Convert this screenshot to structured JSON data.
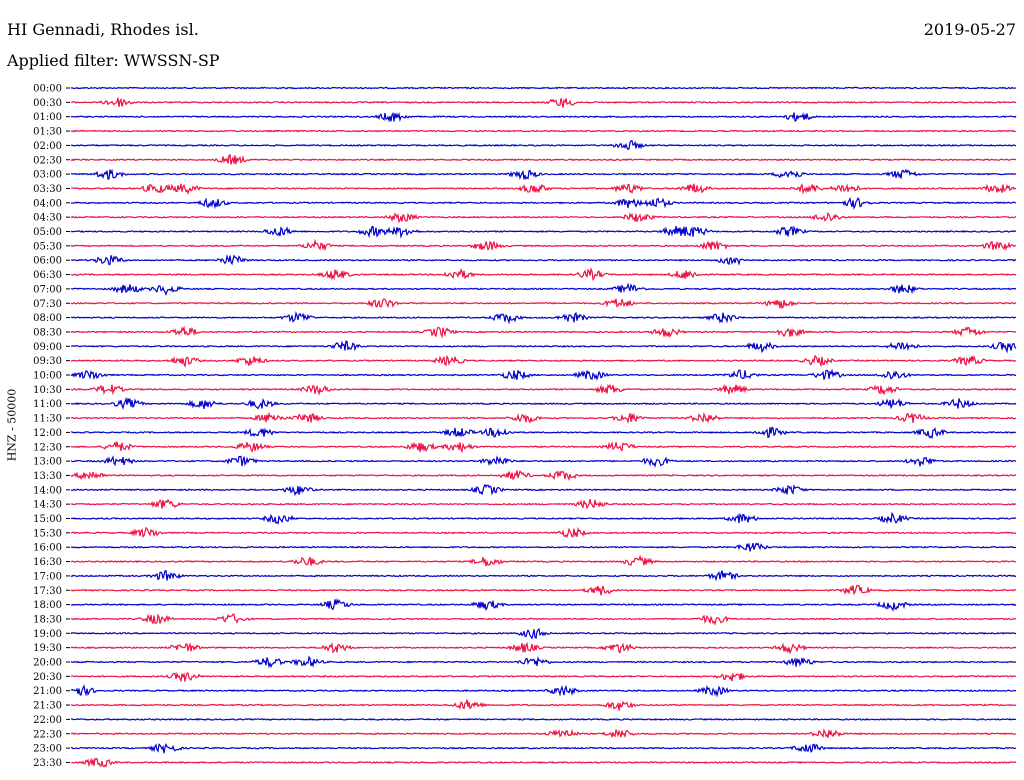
{
  "header": {
    "station": "HI Gennadi, Rhodes isl.",
    "date": "2019-05-27",
    "filter": "Applied filter: WWSSN-SP",
    "channel_label": "HNZ - 50000"
  },
  "colors": {
    "odd_trace": "#0000cc",
    "even_trace": "#ee1144",
    "background": "#ffffff",
    "text": "#000000"
  },
  "chart_data": {
    "type": "line",
    "title": "HI Gennadi, Rhodes isl.",
    "subtitle": "Applied filter: WWSSN-SP",
    "ylabel": "HNZ - 50000",
    "xlabel": "",
    "grid": false,
    "legend": "none",
    "rows": [
      {
        "label": "00:00",
        "color": "#0000cc",
        "events": []
      },
      {
        "label": "00:30",
        "color": "#ee1144",
        "events": [
          0.05,
          0.52
        ]
      },
      {
        "label": "01:00",
        "color": "#0000cc",
        "events": [
          0.34,
          0.77
        ]
      },
      {
        "label": "01:30",
        "color": "#ee1144",
        "events": []
      },
      {
        "label": "02:00",
        "color": "#0000cc",
        "events": [
          0.59
        ]
      },
      {
        "label": "02:30",
        "color": "#ee1144",
        "events": [
          0.17
        ]
      },
      {
        "label": "03:00",
        "color": "#0000cc",
        "events": [
          0.04,
          0.48,
          0.76,
          0.88
        ]
      },
      {
        "label": "03:30",
        "color": "#ee1144",
        "events": [
          0.09,
          0.12,
          0.49,
          0.59,
          0.66,
          0.78,
          0.82,
          0.98
        ]
      },
      {
        "label": "04:00",
        "color": "#0000cc",
        "events": [
          0.15,
          0.59,
          0.62,
          0.83
        ]
      },
      {
        "label": "04:30",
        "color": "#ee1144",
        "events": [
          0.35,
          0.6,
          0.8
        ]
      },
      {
        "label": "05:00",
        "color": "#0000cc",
        "events": [
          0.22,
          0.32,
          0.35,
          0.64,
          0.66,
          0.76
        ]
      },
      {
        "label": "05:30",
        "color": "#ee1144",
        "events": [
          0.26,
          0.44,
          0.68,
          0.98
        ]
      },
      {
        "label": "06:00",
        "color": "#0000cc",
        "events": [
          0.04,
          0.17,
          0.7
        ]
      },
      {
        "label": "06:30",
        "color": "#ee1144",
        "events": [
          0.28,
          0.41,
          0.55,
          0.65
        ]
      },
      {
        "label": "07:00",
        "color": "#0000cc",
        "events": [
          0.06,
          0.1,
          0.59,
          0.88
        ]
      },
      {
        "label": "07:30",
        "color": "#ee1144",
        "events": [
          0.33,
          0.58,
          0.75
        ]
      },
      {
        "label": "08:00",
        "color": "#0000cc",
        "events": [
          0.24,
          0.46,
          0.53,
          0.69
        ]
      },
      {
        "label": "08:30",
        "color": "#ee1144",
        "events": [
          0.12,
          0.39,
          0.63,
          0.76,
          0.95
        ]
      },
      {
        "label": "09:00",
        "color": "#0000cc",
        "events": [
          0.29,
          0.73,
          0.88,
          0.99
        ]
      },
      {
        "label": "09:30",
        "color": "#ee1144",
        "events": [
          0.12,
          0.19,
          0.4,
          0.79,
          0.95
        ]
      },
      {
        "label": "10:00",
        "color": "#0000cc",
        "events": [
          0.02,
          0.47,
          0.55,
          0.71,
          0.8,
          0.87
        ]
      },
      {
        "label": "10:30",
        "color": "#ee1144",
        "events": [
          0.04,
          0.26,
          0.57,
          0.7,
          0.86
        ]
      },
      {
        "label": "11:00",
        "color": "#0000cc",
        "events": [
          0.06,
          0.14,
          0.2,
          0.87,
          0.94
        ]
      },
      {
        "label": "11:30",
        "color": "#ee1144",
        "events": [
          0.21,
          0.25,
          0.48,
          0.59,
          0.67,
          0.89
        ]
      },
      {
        "label": "12:00",
        "color": "#0000cc",
        "events": [
          0.2,
          0.41,
          0.45,
          0.74,
          0.91
        ]
      },
      {
        "label": "12:30",
        "color": "#ee1144",
        "events": [
          0.05,
          0.19,
          0.37,
          0.41,
          0.58
        ]
      },
      {
        "label": "13:00",
        "color": "#0000cc",
        "events": [
          0.05,
          0.18,
          0.45,
          0.62,
          0.9
        ]
      },
      {
        "label": "13:30",
        "color": "#ee1144",
        "events": [
          0.02,
          0.47,
          0.52
        ]
      },
      {
        "label": "14:00",
        "color": "#0000cc",
        "events": [
          0.24,
          0.44,
          0.76
        ]
      },
      {
        "label": "14:30",
        "color": "#ee1144",
        "events": [
          0.1,
          0.55
        ]
      },
      {
        "label": "15:00",
        "color": "#0000cc",
        "events": [
          0.22,
          0.71,
          0.87
        ]
      },
      {
        "label": "15:30",
        "color": "#ee1144",
        "events": [
          0.08,
          0.53
        ]
      },
      {
        "label": "16:00",
        "color": "#0000cc",
        "events": [
          0.72
        ]
      },
      {
        "label": "16:30",
        "color": "#ee1144",
        "events": [
          0.25,
          0.44,
          0.6
        ]
      },
      {
        "label": "17:00",
        "color": "#0000cc",
        "events": [
          0.1,
          0.69
        ]
      },
      {
        "label": "17:30",
        "color": "#ee1144",
        "events": [
          0.56,
          0.83
        ]
      },
      {
        "label": "18:00",
        "color": "#0000cc",
        "events": [
          0.28,
          0.44,
          0.87
        ]
      },
      {
        "label": "18:30",
        "color": "#ee1144",
        "events": [
          0.09,
          0.17,
          0.68
        ]
      },
      {
        "label": "19:00",
        "color": "#0000cc",
        "events": [
          0.49
        ]
      },
      {
        "label": "19:30",
        "color": "#ee1144",
        "events": [
          0.12,
          0.28,
          0.48,
          0.58,
          0.76
        ]
      },
      {
        "label": "20:00",
        "color": "#0000cc",
        "events": [
          0.21,
          0.25,
          0.49,
          0.77
        ]
      },
      {
        "label": "20:30",
        "color": "#ee1144",
        "events": [
          0.12,
          0.7
        ]
      },
      {
        "label": "21:00",
        "color": "#0000cc",
        "events": [
          0.01,
          0.52,
          0.68
        ]
      },
      {
        "label": "21:30",
        "color": "#ee1144",
        "events": [
          0.42,
          0.58
        ]
      },
      {
        "label": "22:00",
        "color": "#0000cc",
        "events": []
      },
      {
        "label": "22:30",
        "color": "#ee1144",
        "events": [
          0.52,
          0.58,
          0.8
        ]
      },
      {
        "label": "23:00",
        "color": "#0000cc",
        "events": [
          0.1,
          0.78
        ]
      },
      {
        "label": "23:30",
        "color": "#ee1144",
        "events": [
          0.03
        ]
      }
    ]
  }
}
